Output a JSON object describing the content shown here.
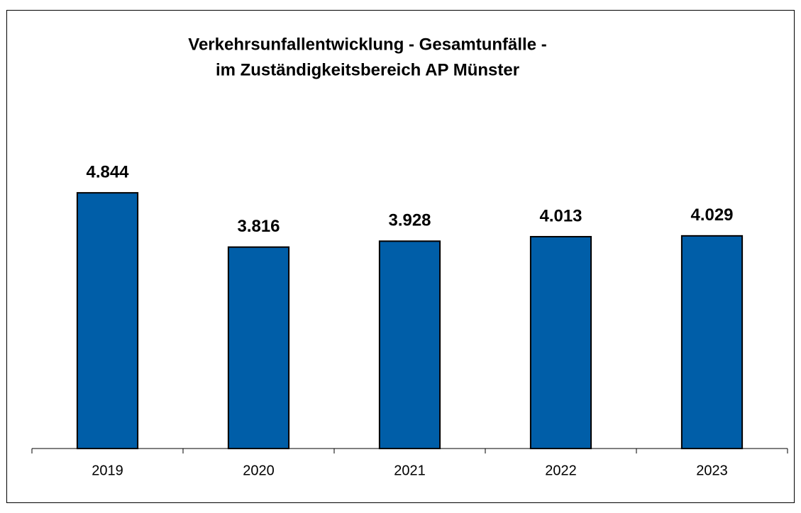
{
  "chart_data": {
    "type": "bar",
    "title": [
      "Verkehrsunfallentwicklung - Gesamtunfälle -",
      "im Zuständigkeitsbereich AP Münster"
    ],
    "categories": [
      "2019",
      "2020",
      "2021",
      "2022",
      "2023"
    ],
    "values": [
      4844,
      3816,
      3928,
      4013,
      4029
    ],
    "value_labels": [
      "4.844",
      "3.816",
      "3.928",
      "4.013",
      "4.029"
    ],
    "color": "#005ea8",
    "ylim": [
      0,
      6000
    ]
  }
}
